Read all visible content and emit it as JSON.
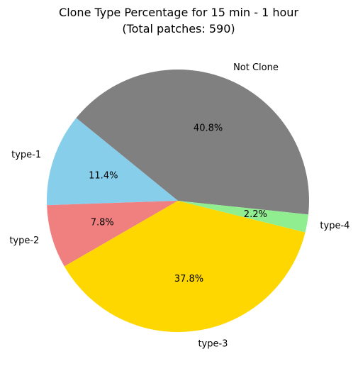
{
  "chart_data": {
    "type": "pie",
    "title_line1": "Clone Type Percentage for 15 min - 1 hour",
    "title_line2": "(Total patches: 590)",
    "start_angle_deg": -6.0,
    "slices": [
      {
        "label": "Not Clone",
        "percent": 40.8,
        "pct_label": "40.8%",
        "color": "#808080"
      },
      {
        "label": "type-1",
        "percent": 11.4,
        "pct_label": "11.4%",
        "color": "#87ceeb"
      },
      {
        "label": "type-2",
        "percent": 7.8,
        "pct_label": "7.8%",
        "color": "#f08080"
      },
      {
        "label": "type-3",
        "percent": 37.8,
        "pct_label": "37.8%",
        "color": "#ffd700"
      },
      {
        "label": "type-4",
        "percent": 2.2,
        "pct_label": "2.2%",
        "color": "#90ee90"
      }
    ]
  }
}
